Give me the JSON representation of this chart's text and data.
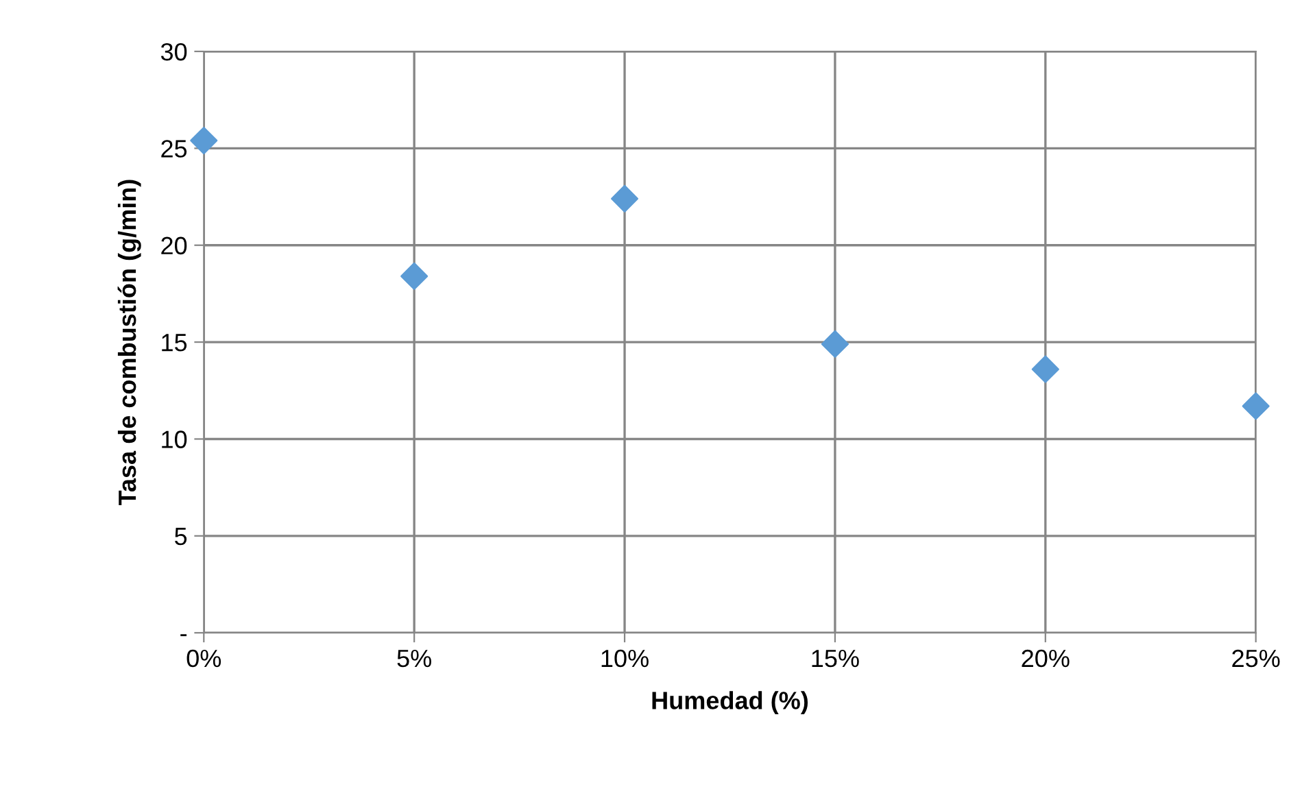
{
  "chart_data": {
    "type": "scatter",
    "xlabel": "Humedad (%)",
    "ylabel": "Tasa de combustión (g/min)",
    "x": [
      0,
      5,
      10,
      15,
      20,
      25
    ],
    "series": [
      {
        "color": "#5b9bd5",
        "values": [
          25.4,
          18.4,
          22.4,
          14.9,
          13.6,
          11.7
        ]
      }
    ],
    "xlim": [
      0,
      25
    ],
    "xticks": [
      {
        "value": 0,
        "label": "0%"
      },
      {
        "value": 5,
        "label": "5%"
      },
      {
        "value": 10,
        "label": "10%"
      },
      {
        "value": 15,
        "label": "15%"
      },
      {
        "value": 20,
        "label": "20%"
      },
      {
        "value": 25,
        "label": "25%"
      }
    ],
    "ylim": [
      0,
      30
    ],
    "yticks": [
      {
        "value": 0,
        "label": "-"
      },
      5,
      10,
      15,
      20,
      25,
      30
    ],
    "grid": true,
    "marker": "diamond",
    "legend": false
  }
}
